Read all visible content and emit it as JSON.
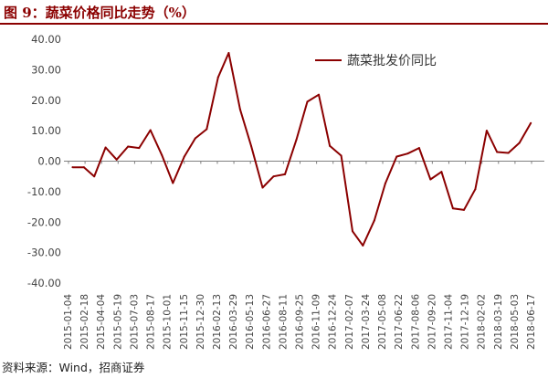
{
  "header": {
    "title": "图 9：蔬菜价格同比走势（%）"
  },
  "footer": {
    "source": "资料来源：Wind，招商证券"
  },
  "colors": {
    "series": "#8b0000",
    "title": "#8b0000",
    "axis": "#808080",
    "text": "#444444"
  },
  "chart_data": {
    "type": "line",
    "title": "",
    "xlabel": "",
    "ylabel": "",
    "ylim": [
      -40,
      40
    ],
    "yticks": [
      40,
      30,
      20,
      10,
      0,
      -10,
      -20,
      -30,
      -40
    ],
    "ytick_labels": [
      "40.00",
      "30.00",
      "20.00",
      "10.00",
      "0.00",
      "-10.00",
      "-20.00",
      "-30.00",
      "-40.00"
    ],
    "x_tick_labels": [
      "2015-01-04",
      "2015-02-18",
      "2015-04-04",
      "2015-05-19",
      "2015-07-03",
      "2015-08-17",
      "2015-10-01",
      "2015-11-15",
      "2015-12-30",
      "2016-02-13",
      "2016-03-29",
      "2016-05-13",
      "2016-06-27",
      "2016-08-11",
      "2016-09-25",
      "2016-11-09",
      "2016-12-24",
      "2017-02-07",
      "2017-03-24",
      "2017-05-08",
      "2017-06-22",
      "2017-08-06",
      "2017-09-20",
      "2017-11-04",
      "2017-12-19",
      "2018-02-02",
      "2018-03-19",
      "2018-05-03",
      "2018-06-17"
    ],
    "legend_position": "top-right",
    "grid": false,
    "series": [
      {
        "name": "蔬菜批发价同比",
        "x": [
          "2015-01-15",
          "2015-02-15",
          "2015-03-15",
          "2015-04-15",
          "2015-05-15",
          "2015-06-15",
          "2015-07-15",
          "2015-08-15",
          "2015-09-15",
          "2015-10-15",
          "2015-11-15",
          "2015-12-15",
          "2016-01-15",
          "2016-02-15",
          "2016-03-15",
          "2016-04-15",
          "2016-05-15",
          "2016-06-15",
          "2016-07-15",
          "2016-08-15",
          "2016-09-15",
          "2016-10-15",
          "2016-11-15",
          "2016-12-15",
          "2017-01-15",
          "2017-02-15",
          "2017-03-15",
          "2017-04-15",
          "2017-05-15",
          "2017-06-15",
          "2017-07-15",
          "2017-08-15",
          "2017-09-15",
          "2017-10-15",
          "2017-11-15",
          "2017-12-15",
          "2018-01-15",
          "2018-02-15",
          "2018-03-15",
          "2018-04-15",
          "2018-05-15",
          "2018-06-15"
        ],
        "values": [
          -2.0,
          -2.0,
          -5.0,
          4.5,
          0.5,
          4.8,
          4.3,
          10.2,
          2.0,
          -7.2,
          1.5,
          7.5,
          10.5,
          27.5,
          35.5,
          17.0,
          5.0,
          -8.7,
          -5.0,
          -4.3,
          7.0,
          19.5,
          21.8,
          5.0,
          1.8,
          -23.0,
          -27.7,
          -19.5,
          -7.3,
          1.5,
          2.5,
          4.3,
          -6.0,
          -3.5,
          -15.5,
          -16.0,
          -9.2,
          10.0,
          3.0,
          2.7,
          6.0,
          12.5
        ]
      }
    ]
  }
}
